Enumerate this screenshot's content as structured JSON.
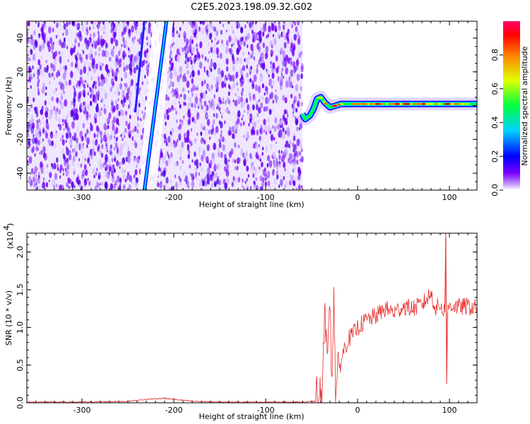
{
  "chart_data": [
    {
      "type": "heatmap",
      "title": "C2E5.2023.198.09.32.G02",
      "xlabel": "Height of straight line (km)",
      "ylabel": "Frequency (Hz)",
      "xlim": [
        -360,
        130
      ],
      "ylim": [
        -50,
        50
      ],
      "xticks": [
        -300,
        -200,
        -100,
        0,
        100
      ],
      "yticks": [
        -40,
        -20,
        0,
        20,
        40
      ],
      "colorbar": {
        "label": "Normalized spectral amplitude",
        "range": [
          0.0,
          1.0
        ],
        "ticks": [
          "0.0",
          "0.2",
          "0.4",
          "0.6",
          "0.8"
        ],
        "colors": [
          "#ffffff",
          "#7a00ff",
          "#0000ff",
          "#00d0ff",
          "#00ff40",
          "#e0ff00",
          "#ff8000",
          "#ff0000",
          "#ff0070"
        ]
      },
      "features": {
        "noise_region_x": [
          -360,
          -60
        ],
        "diagonal_streak": {
          "x": [
            -232,
            -208
          ],
          "y": [
            -50,
            50
          ]
        },
        "signal_track": {
          "x": [
            -60,
            -57,
            -52,
            -48,
            -44,
            -40,
            -36,
            -30,
            -24,
            -18,
            -10,
            0,
            20,
            40,
            60,
            80,
            100,
            120,
            130
          ],
          "y": [
            -5,
            -8,
            -6,
            -2,
            4,
            5,
            2,
            -1,
            0,
            1,
            1,
            1,
            1,
            1,
            1,
            1,
            1,
            1,
            1
          ]
        }
      }
    },
    {
      "type": "line",
      "xlabel": "Height of straight line (km)",
      "ylabel": "SNR (10 * v/v)",
      "yscale_label": "(x10",
      "yscale_exp": "4",
      "xlim": [
        -360,
        130
      ],
      "ylim": [
        0,
        2.25
      ],
      "xticks": [
        -300,
        -200,
        -100,
        0,
        100
      ],
      "yticks": [
        "0.0",
        "0.5",
        "1.0",
        "1.5",
        "2.0"
      ],
      "series": [
        {
          "color": "#e83030",
          "x": [
            -360,
            -300,
            -250,
            -225,
            -210,
            -195,
            -180,
            -150,
            -100,
            -60,
            -45,
            -40,
            -38,
            -36,
            -34,
            -32,
            -30,
            -28,
            -26,
            -24,
            -22,
            -20,
            -15,
            -10,
            -5,
            0,
            10,
            20,
            30,
            40,
            50,
            60,
            70,
            80,
            85,
            90,
            95,
            96,
            97,
            98,
            100,
            110,
            120,
            130
          ],
          "values": [
            0.01,
            0.01,
            0.02,
            0.05,
            0.06,
            0.04,
            0.02,
            0.01,
            0.01,
            0.01,
            0.02,
            0.05,
            0.3,
            0.9,
            1.3,
            0.6,
            1.4,
            0.3,
            1.5,
            0.2,
            0.25,
            0.45,
            0.7,
            0.85,
            0.9,
            1.0,
            1.1,
            1.15,
            1.25,
            1.2,
            1.28,
            1.25,
            1.3,
            1.45,
            1.25,
            1.3,
            1.2,
            2.2,
            0.3,
            1.2,
            1.3,
            1.27,
            1.28,
            1.26
          ]
        }
      ]
    }
  ]
}
